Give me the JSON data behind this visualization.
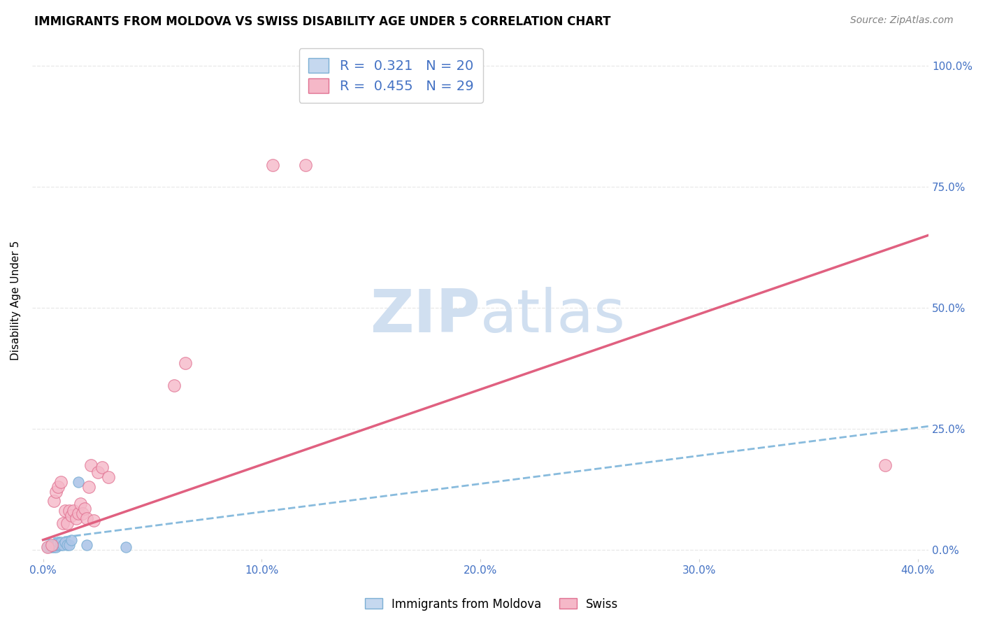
{
  "title": "IMMIGRANTS FROM MOLDOVA VS SWISS DISABILITY AGE UNDER 5 CORRELATION CHART",
  "source": "Source: ZipAtlas.com",
  "ylabel_label": "Disability Age Under 5",
  "x_tick_labels": [
    "0.0%",
    "10.0%",
    "20.0%",
    "30.0%",
    "40.0%"
  ],
  "x_tick_values": [
    0.0,
    0.1,
    0.2,
    0.3,
    0.4
  ],
  "y_tick_labels": [
    "0.0%",
    "25.0%",
    "50.0%",
    "75.0%",
    "100.0%"
  ],
  "y_tick_values": [
    0.0,
    0.25,
    0.5,
    0.75,
    1.0
  ],
  "xlim": [
    -0.005,
    0.405
  ],
  "ylim": [
    -0.02,
    1.05
  ],
  "blue_scatter_x": [
    0.002,
    0.003,
    0.004,
    0.004,
    0.005,
    0.005,
    0.006,
    0.006,
    0.007,
    0.007,
    0.008,
    0.008,
    0.009,
    0.01,
    0.011,
    0.012,
    0.013,
    0.016,
    0.02,
    0.038
  ],
  "blue_scatter_y": [
    0.005,
    0.005,
    0.005,
    0.01,
    0.005,
    0.01,
    0.005,
    0.01,
    0.01,
    0.015,
    0.01,
    0.015,
    0.01,
    0.015,
    0.01,
    0.01,
    0.02,
    0.14,
    0.01,
    0.005
  ],
  "pink_scatter_x": [
    0.002,
    0.004,
    0.005,
    0.006,
    0.007,
    0.008,
    0.009,
    0.01,
    0.011,
    0.012,
    0.013,
    0.014,
    0.015,
    0.016,
    0.017,
    0.018,
    0.019,
    0.02,
    0.021,
    0.022,
    0.023,
    0.025,
    0.027,
    0.03,
    0.06,
    0.065,
    0.105,
    0.12,
    0.385
  ],
  "pink_scatter_y": [
    0.005,
    0.01,
    0.1,
    0.12,
    0.13,
    0.14,
    0.055,
    0.08,
    0.055,
    0.08,
    0.07,
    0.08,
    0.065,
    0.075,
    0.095,
    0.075,
    0.085,
    0.065,
    0.13,
    0.175,
    0.06,
    0.16,
    0.17,
    0.15,
    0.34,
    0.385,
    0.795,
    0.795,
    0.175
  ],
  "blue_R": 0.321,
  "blue_N": 20,
  "pink_R": 0.455,
  "pink_N": 29,
  "blue_line_x": [
    0.0,
    0.405
  ],
  "blue_line_y": [
    0.02,
    0.255
  ],
  "pink_line_x": [
    0.0,
    0.405
  ],
  "pink_line_y": [
    0.02,
    0.65
  ],
  "blue_marker_color": "#aec6e8",
  "blue_marker_edge": "#7bafd4",
  "pink_marker_color": "#f5b8c8",
  "pink_marker_edge": "#e07090",
  "blue_line_color": "#88bbdd",
  "pink_line_color": "#e06080",
  "legend_blue_fill": "#c5d8ef",
  "legend_pink_fill": "#f5b8c8",
  "watermark_color": "#d0dff0",
  "background_color": "#ffffff",
  "grid_color": "#e8e8e8",
  "title_fontsize": 12,
  "axis_label_fontsize": 11,
  "tick_fontsize": 11,
  "legend_fontsize": 14,
  "tick_color": "#4472C4"
}
